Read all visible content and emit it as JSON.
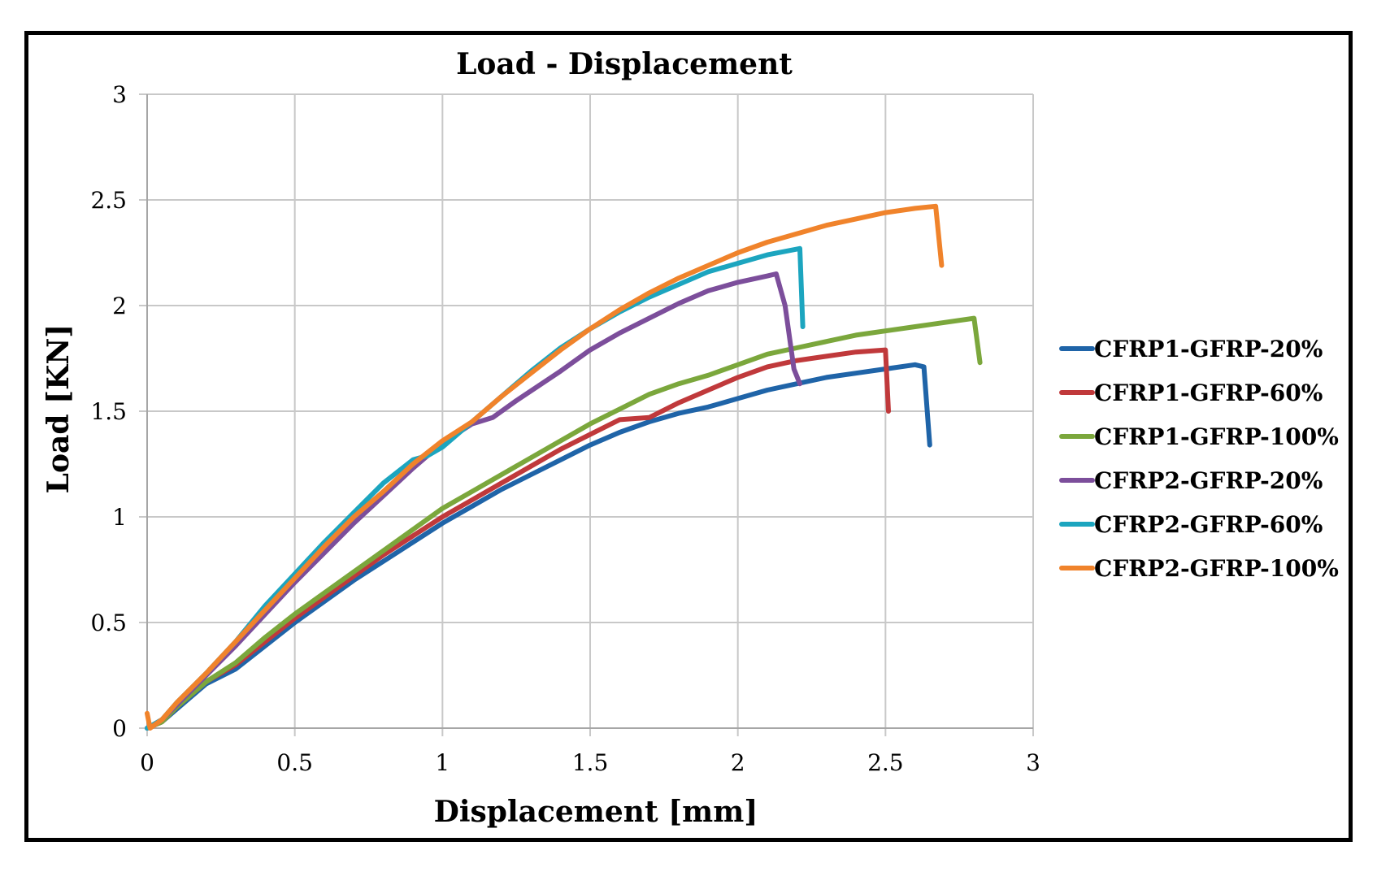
{
  "chart_data": {
    "type": "line",
    "title": "Load - Displacement",
    "xlabel": "Displacement [mm]",
    "ylabel": "Load [KN]",
    "xlim": [
      0,
      3
    ],
    "ylim": [
      0,
      3
    ],
    "x_ticks": [
      "0",
      "0.5",
      "1",
      "1.5",
      "2",
      "2.5",
      "3"
    ],
    "y_ticks": [
      "0",
      "0.5",
      "1",
      "1.5",
      "2",
      "2.5",
      "3"
    ],
    "grid": true,
    "legend_position": "right",
    "series": [
      {
        "name": "CFRP1-GFRP-20%",
        "color": "#1f64a8",
        "points": [
          [
            0,
            0
          ],
          [
            0.05,
            0.03
          ],
          [
            0.1,
            0.09
          ],
          [
            0.15,
            0.15
          ],
          [
            0.2,
            0.21
          ],
          [
            0.3,
            0.28
          ],
          [
            0.4,
            0.39
          ],
          [
            0.5,
            0.5
          ],
          [
            0.6,
            0.6
          ],
          [
            0.7,
            0.7
          ],
          [
            0.8,
            0.79
          ],
          [
            0.9,
            0.88
          ],
          [
            1,
            0.97
          ],
          [
            1.1,
            1.05
          ],
          [
            1.2,
            1.13
          ],
          [
            1.3,
            1.2
          ],
          [
            1.4,
            1.27
          ],
          [
            1.5,
            1.34
          ],
          [
            1.6,
            1.4
          ],
          [
            1.7,
            1.45
          ],
          [
            1.8,
            1.49
          ],
          [
            1.9,
            1.52
          ],
          [
            2,
            1.56
          ],
          [
            2.1,
            1.6
          ],
          [
            2.2,
            1.63
          ],
          [
            2.3,
            1.66
          ],
          [
            2.4,
            1.68
          ],
          [
            2.5,
            1.7
          ],
          [
            2.6,
            1.72
          ],
          [
            2.63,
            1.71
          ],
          [
            2.65,
            1.34
          ]
        ]
      },
      {
        "name": "CFRP1-GFRP-60%",
        "color": "#c0393b",
        "points": [
          [
            0,
            0
          ],
          [
            0.05,
            0.03
          ],
          [
            0.1,
            0.1
          ],
          [
            0.2,
            0.22
          ],
          [
            0.3,
            0.3
          ],
          [
            0.4,
            0.41
          ],
          [
            0.5,
            0.52
          ],
          [
            0.6,
            0.62
          ],
          [
            0.7,
            0.72
          ],
          [
            0.8,
            0.82
          ],
          [
            0.9,
            0.91
          ],
          [
            1,
            1
          ],
          [
            1.1,
            1.08
          ],
          [
            1.2,
            1.16
          ],
          [
            1.3,
            1.24
          ],
          [
            1.4,
            1.32
          ],
          [
            1.5,
            1.39
          ],
          [
            1.6,
            1.46
          ],
          [
            1.7,
            1.47
          ],
          [
            1.8,
            1.54
          ],
          [
            1.9,
            1.6
          ],
          [
            2,
            1.66
          ],
          [
            2.1,
            1.71
          ],
          [
            2.2,
            1.74
          ],
          [
            2.3,
            1.76
          ],
          [
            2.4,
            1.78
          ],
          [
            2.5,
            1.79
          ],
          [
            2.51,
            1.5
          ]
        ]
      },
      {
        "name": "CFRP1-GFRP-100%",
        "color": "#7ba73c",
        "points": [
          [
            0,
            0
          ],
          [
            0.05,
            0.03
          ],
          [
            0.1,
            0.1
          ],
          [
            0.2,
            0.22
          ],
          [
            0.3,
            0.31
          ],
          [
            0.4,
            0.43
          ],
          [
            0.5,
            0.54
          ],
          [
            0.6,
            0.64
          ],
          [
            0.7,
            0.74
          ],
          [
            0.8,
            0.84
          ],
          [
            0.9,
            0.94
          ],
          [
            1,
            1.04
          ],
          [
            1.1,
            1.12
          ],
          [
            1.2,
            1.2
          ],
          [
            1.3,
            1.28
          ],
          [
            1.4,
            1.36
          ],
          [
            1.5,
            1.44
          ],
          [
            1.6,
            1.51
          ],
          [
            1.7,
            1.58
          ],
          [
            1.8,
            1.63
          ],
          [
            1.9,
            1.67
          ],
          [
            2,
            1.72
          ],
          [
            2.1,
            1.77
          ],
          [
            2.2,
            1.8
          ],
          [
            2.3,
            1.83
          ],
          [
            2.4,
            1.86
          ],
          [
            2.5,
            1.88
          ],
          [
            2.6,
            1.9
          ],
          [
            2.7,
            1.92
          ],
          [
            2.8,
            1.94
          ],
          [
            2.82,
            1.73
          ]
        ]
      },
      {
        "name": "CFRP2-GFRP-20%",
        "color": "#7c4e9b",
        "points": [
          [
            0,
            0
          ],
          [
            0.05,
            0.04
          ],
          [
            0.1,
            0.11
          ],
          [
            0.2,
            0.25
          ],
          [
            0.3,
            0.39
          ],
          [
            0.4,
            0.54
          ],
          [
            0.5,
            0.69
          ],
          [
            0.6,
            0.83
          ],
          [
            0.7,
            0.97
          ],
          [
            0.8,
            1.1
          ],
          [
            0.9,
            1.23
          ],
          [
            1,
            1.35
          ],
          [
            1.1,
            1.44
          ],
          [
            1.17,
            1.47
          ],
          [
            1.25,
            1.55
          ],
          [
            1.4,
            1.69
          ],
          [
            1.5,
            1.79
          ],
          [
            1.6,
            1.87
          ],
          [
            1.7,
            1.94
          ],
          [
            1.8,
            2.01
          ],
          [
            1.9,
            2.07
          ],
          [
            2,
            2.11
          ],
          [
            2.1,
            2.14
          ],
          [
            2.13,
            2.15
          ],
          [
            2.16,
            2.0
          ],
          [
            2.19,
            1.7
          ],
          [
            2.21,
            1.63
          ]
        ]
      },
      {
        "name": "CFRP2-GFRP-60%",
        "color": "#1ca5bf",
        "points": [
          [
            0,
            0
          ],
          [
            0.05,
            0.04
          ],
          [
            0.1,
            0.12
          ],
          [
            0.2,
            0.26
          ],
          [
            0.3,
            0.41
          ],
          [
            0.4,
            0.58
          ],
          [
            0.5,
            0.73
          ],
          [
            0.6,
            0.88
          ],
          [
            0.7,
            1.02
          ],
          [
            0.8,
            1.16
          ],
          [
            0.9,
            1.27
          ],
          [
            0.95,
            1.29
          ],
          [
            1,
            1.33
          ],
          [
            1.1,
            1.45
          ],
          [
            1.2,
            1.57
          ],
          [
            1.3,
            1.69
          ],
          [
            1.4,
            1.8
          ],
          [
            1.5,
            1.89
          ],
          [
            1.6,
            1.97
          ],
          [
            1.7,
            2.04
          ],
          [
            1.8,
            2.1
          ],
          [
            1.9,
            2.16
          ],
          [
            2,
            2.2
          ],
          [
            2.1,
            2.24
          ],
          [
            2.21,
            2.27
          ],
          [
            2.22,
            1.9
          ]
        ]
      },
      {
        "name": "CFRP2-GFRP-100%",
        "color": "#f0832b",
        "points": [
          [
            0,
            0.07
          ],
          [
            0.01,
            0
          ],
          [
            0.05,
            0.04
          ],
          [
            0.1,
            0.12
          ],
          [
            0.2,
            0.26
          ],
          [
            0.3,
            0.41
          ],
          [
            0.4,
            0.56
          ],
          [
            0.5,
            0.71
          ],
          [
            0.6,
            0.86
          ],
          [
            0.7,
            1.0
          ],
          [
            0.8,
            1.12
          ],
          [
            0.9,
            1.25
          ],
          [
            1,
            1.36
          ],
          [
            1.1,
            1.45
          ],
          [
            1.2,
            1.57
          ],
          [
            1.3,
            1.68
          ],
          [
            1.4,
            1.79
          ],
          [
            1.5,
            1.89
          ],
          [
            1.6,
            1.98
          ],
          [
            1.7,
            2.06
          ],
          [
            1.8,
            2.13
          ],
          [
            1.9,
            2.19
          ],
          [
            2,
            2.25
          ],
          [
            2.1,
            2.3
          ],
          [
            2.2,
            2.34
          ],
          [
            2.3,
            2.38
          ],
          [
            2.4,
            2.41
          ],
          [
            2.5,
            2.44
          ],
          [
            2.6,
            2.46
          ],
          [
            2.67,
            2.47
          ],
          [
            2.69,
            2.19
          ]
        ]
      }
    ]
  }
}
